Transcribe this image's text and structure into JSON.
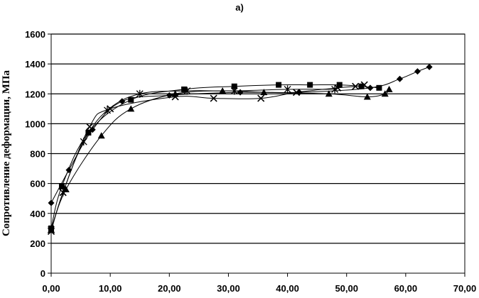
{
  "chart_data": {
    "type": "scatter",
    "title": "а)",
    "xlabel": "",
    "ylabel": "Сопротивление деформации, МПа",
    "xlim": [
      0,
      70
    ],
    "ylim": [
      0,
      1600
    ],
    "xticks": [
      "0,00",
      "10,00",
      "20,00",
      "30,00",
      "40,00",
      "50,00",
      "60,00",
      "70,00"
    ],
    "yticks": [
      "0",
      "200",
      "400",
      "600",
      "800",
      "1000",
      "1200",
      "1400",
      "1600"
    ],
    "grid": "horizontal",
    "legend": "none",
    "series": [
      {
        "marker": "diamond",
        "points": [
          [
            0,
            470
          ],
          [
            3,
            690
          ],
          [
            7,
            960
          ],
          [
            12,
            1150
          ],
          [
            20,
            1190
          ],
          [
            32,
            1210
          ],
          [
            42,
            1210
          ],
          [
            54,
            1240
          ],
          [
            59,
            1300
          ],
          [
            62,
            1350
          ],
          [
            64,
            1380
          ]
        ]
      },
      {
        "marker": "square",
        "points": [
          [
            0,
            300
          ],
          [
            1.8,
            580
          ],
          [
            6.3,
            940
          ],
          [
            13.5,
            1160
          ],
          [
            22.5,
            1230
          ],
          [
            31,
            1250
          ],
          [
            38.5,
            1260
          ],
          [
            43.8,
            1260
          ],
          [
            48.8,
            1260
          ],
          [
            52.5,
            1250
          ],
          [
            55.5,
            1240
          ]
        ]
      },
      {
        "marker": "triangle",
        "points": [
          [
            0,
            290
          ],
          [
            2.5,
            560
          ],
          [
            8.5,
            920
          ],
          [
            13.5,
            1100
          ],
          [
            21,
            1200
          ],
          [
            29,
            1220
          ],
          [
            36,
            1210
          ],
          [
            47,
            1200
          ],
          [
            53.5,
            1180
          ],
          [
            56.5,
            1200
          ],
          [
            57.2,
            1230
          ]
        ]
      },
      {
        "marker": "x",
        "points": [
          [
            0,
            280
          ],
          [
            2,
            540
          ],
          [
            6.5,
            980
          ],
          [
            10,
            1100
          ],
          [
            21,
            1180
          ],
          [
            27.5,
            1170
          ],
          [
            35.5,
            1170
          ],
          [
            41.5,
            1210
          ],
          [
            48.5,
            1240
          ],
          [
            51.5,
            1250
          ],
          [
            53,
            1260
          ]
        ]
      },
      {
        "marker": "star",
        "points": [
          [
            0,
            290
          ],
          [
            2,
            540
          ],
          [
            5.5,
            880
          ],
          [
            9.5,
            1090
          ],
          [
            15,
            1200
          ],
          [
            23,
            1220
          ],
          [
            31,
            1220
          ],
          [
            40,
            1230
          ],
          [
            48,
            1230
          ]
        ]
      }
    ]
  }
}
